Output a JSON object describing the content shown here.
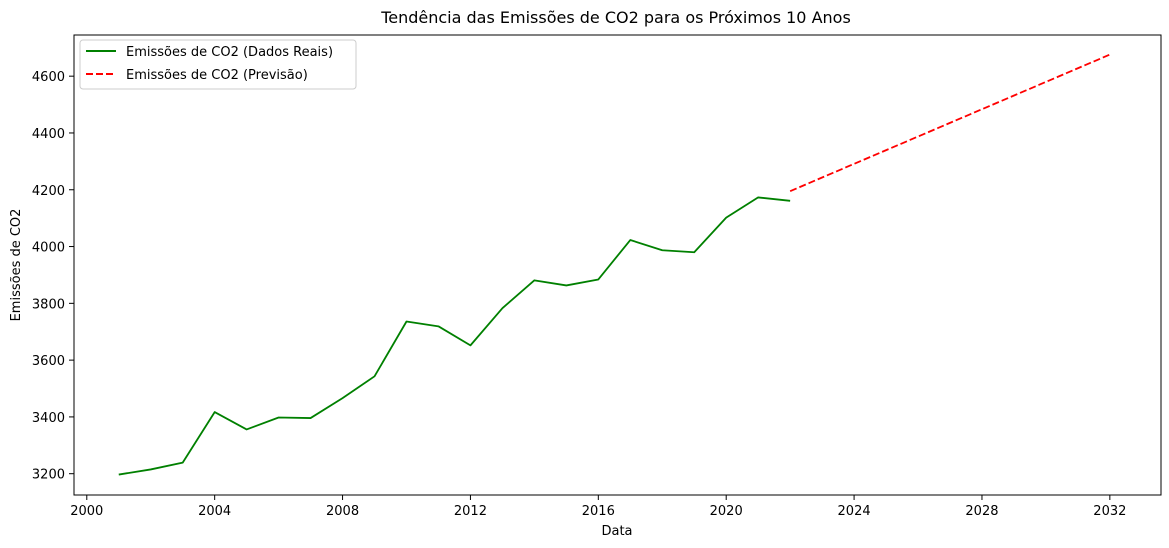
{
  "chart_data": {
    "type": "line",
    "title": "Tendência das Emissões de CO2 para os Próximos 10 Anos",
    "xlabel": "Data",
    "ylabel": "Emissões de CO2",
    "xlim": [
      1999.6,
      2033.6
    ],
    "ylim": [
      3125,
      4745
    ],
    "x_ticks": [
      2000,
      2004,
      2008,
      2012,
      2016,
      2020,
      2024,
      2028,
      2032
    ],
    "y_ticks": [
      3200,
      3400,
      3600,
      3800,
      4000,
      4200,
      4400,
      4600
    ],
    "grid": false,
    "legend_position": "top-left",
    "series": [
      {
        "name": "Emissões de CO2 (Dados Reais)",
        "color": "#008000",
        "style": "solid",
        "x": [
          2001,
          2002,
          2003,
          2004,
          2005,
          2006,
          2007,
          2008,
          2009,
          2010,
          2011,
          2012,
          2013,
          2014,
          2015,
          2016,
          2017,
          2018,
          2019,
          2020,
          2021,
          2022
        ],
        "y": [
          3197,
          3215,
          3239,
          3417,
          3356,
          3398,
          3396,
          3466,
          3543,
          3736,
          3719,
          3652,
          3783,
          3881,
          3863,
          3884,
          4023,
          3987,
          3980,
          4102,
          4173,
          4161
        ]
      },
      {
        "name": "Emissões de CO2 (Previsão)",
        "color": "#ff0000",
        "style": "dashed",
        "x": [
          2022,
          2032
        ],
        "y": [
          4195,
          4676
        ]
      }
    ]
  }
}
